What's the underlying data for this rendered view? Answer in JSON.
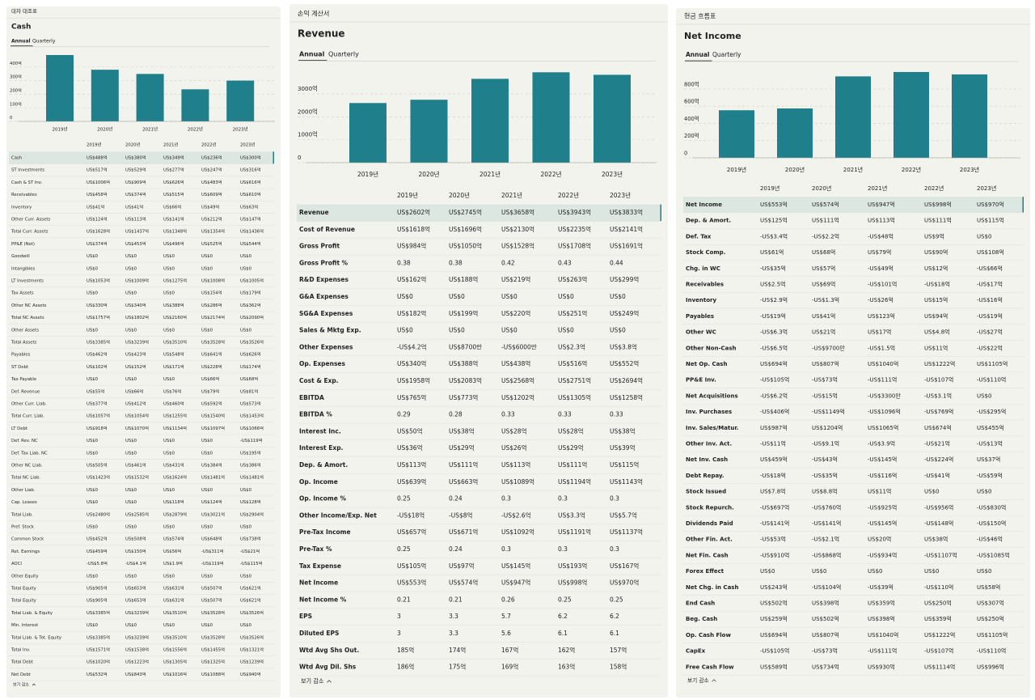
{
  "chart_data": [
    {
      "type": "bar",
      "title": "Cash",
      "categories": [
        "2019년",
        "2020년",
        "2021년",
        "2022년",
        "2023년"
      ],
      "values": [
        488,
        380,
        349,
        236,
        300
      ],
      "color": "#1f7f8a",
      "ylim": [
        0,
        500
      ],
      "yticks": [
        0,
        {
          "value": 100,
          "label": "100억"
        },
        {
          "value": 200,
          "label": "200억"
        },
        {
          "value": 300,
          "label": "300억"
        },
        {
          "value": 400,
          "label": "400억"
        }
      ],
      "grid": true
    },
    {
      "type": "bar",
      "title": "Revenue",
      "categories": [
        "2019년",
        "2020년",
        "2021년",
        "2022년",
        "2023년"
      ],
      "values": [
        2602,
        2745,
        3658,
        3943,
        3833
      ],
      "color": "#1f7f8a",
      "ylim": [
        0,
        4000
      ],
      "yticks": [
        0,
        {
          "value": 1000,
          "label": "1000억"
        },
        {
          "value": 2000,
          "label": "2000억"
        },
        {
          "value": 3000,
          "label": "3000억"
        }
      ],
      "grid": true
    },
    {
      "type": "bar",
      "title": "Net Income",
      "categories": [
        "2019년",
        "2020년",
        "2021년",
        "2022년",
        "2023년"
      ],
      "values": [
        553,
        574,
        947,
        998,
        970
      ],
      "color": "#1f7f8a",
      "ylim": [
        0,
        1000
      ],
      "yticks": [
        0,
        {
          "value": 200,
          "label": "200억"
        },
        {
          "value": 400,
          "label": "400억"
        },
        {
          "value": 600,
          "label": "600억"
        },
        {
          "value": 800,
          "label": "800억"
        }
      ],
      "grid": true
    }
  ],
  "panels": [
    {
      "header": "대차 대조표",
      "tabs": [
        "Annual",
        "Quarterly"
      ],
      "footer": "보기 감소",
      "table": {
        "columns": [
          "2019년",
          "2020년",
          "2021년",
          "2022년",
          "2023년"
        ],
        "rows": [
          [
            "Cash",
            "US$488억",
            "US$380억",
            "US$349억",
            "US$236억",
            "US$300억"
          ],
          [
            "ST Investments",
            "US$517억",
            "US$529억",
            "US$277억",
            "US$247억",
            "US$316억"
          ],
          [
            "Cash & ST Inv.",
            "US$1006억",
            "US$909억",
            "US$626억",
            "US$483억",
            "US$616억"
          ],
          [
            "Receivables",
            "US$458억",
            "US$374억",
            "US$515억",
            "US$609억",
            "US$610억"
          ],
          [
            "Inventory",
            "US$41억",
            "US$41억",
            "US$66억",
            "US$49억",
            "US$63억"
          ],
          [
            "Other Curr. Assets",
            "US$124억",
            "US$113억",
            "US$141억",
            "US$212억",
            "US$147억"
          ],
          [
            "Total Curr. Assets",
            "US$1628억",
            "US$1437억",
            "US$1348억",
            "US$1354억",
            "US$1436억"
          ],
          [
            "PP&E (Net)",
            "US$374억",
            "US$453억",
            "US$496억",
            "US$525억",
            "US$544억"
          ],
          [
            "Goodwill",
            "US$0",
            "US$0",
            "US$0",
            "US$0",
            "US$0"
          ],
          [
            "Intangibles",
            "US$0",
            "US$0",
            "US$0",
            "US$0",
            "US$0"
          ],
          [
            "LT Investments",
            "US$1053억",
            "US$1009억",
            "US$1275억",
            "US$1008억",
            "US$1005억"
          ],
          [
            "Tax Assets",
            "US$0",
            "US$0",
            "US$0",
            "US$154억",
            "US$179억"
          ],
          [
            "Other NC Assets",
            "US$330억",
            "US$340억",
            "US$388억",
            "US$286억",
            "US$362억"
          ],
          [
            "Total NC Assets",
            "US$1757억",
            "US$1802억",
            "US$2160억",
            "US$2174억",
            "US$2090억"
          ],
          [
            "Other Assets",
            "US$0",
            "US$0",
            "US$0",
            "US$0",
            "US$0"
          ],
          [
            "Total Assets",
            "US$3385억",
            "US$3239억",
            "US$3510억",
            "US$3528억",
            "US$3526억"
          ],
          [
            "Payables",
            "US$462억",
            "US$423억",
            "US$548억",
            "US$641억",
            "US$626억"
          ],
          [
            "ST Debt",
            "US$102억",
            "US$152억",
            "US$171억",
            "US$228억",
            "US$174억"
          ],
          [
            "Tax Payable",
            "US$0",
            "US$0",
            "US$0",
            "US$66억",
            "US$68억"
          ],
          [
            "Def. Revenue",
            "US$55억",
            "US$66억",
            "US$76억",
            "US$79억",
            "US$81억"
          ],
          [
            "Other Curr. Liab.",
            "US$377억",
            "US$412억",
            "US$460억",
            "US$592억",
            "US$573억"
          ],
          [
            "Total Curr. Liab.",
            "US$1057억",
            "US$1054억",
            "US$1255억",
            "US$1540억",
            "US$1453억"
          ],
          [
            "LT Debt",
            "US$918억",
            "US$1070억",
            "US$1134억",
            "US$1097억",
            "US$1066억"
          ],
          [
            "Def. Rev. NC",
            "US$0",
            "US$0",
            "US$0",
            "US$0",
            "-US$119억"
          ],
          [
            "Def. Tax Liab. NC",
            "US$0",
            "US$0",
            "US$0",
            "US$0",
            "US$195억"
          ],
          [
            "Other NC Liab.",
            "US$505억",
            "US$461억",
            "US$431억",
            "US$384억",
            "US$386억"
          ],
          [
            "Total NC Liab.",
            "US$1423억",
            "US$1532억",
            "US$1624억",
            "US$1481억",
            "US$1481억"
          ],
          [
            "Other Liab.",
            "US$0",
            "US$0",
            "US$0",
            "US$0",
            "US$0"
          ],
          [
            "Cap. Leases",
            "US$0",
            "US$0",
            "US$118억",
            "US$124억",
            "US$128억"
          ],
          [
            "Total Liab.",
            "US$2480억",
            "US$2585억",
            "US$2879억",
            "US$3021억",
            "US$2904억"
          ],
          [
            "Pref. Stock",
            "US$0",
            "US$0",
            "US$0",
            "US$0",
            "US$0"
          ],
          [
            "Common Stock",
            "US$452억",
            "US$508억",
            "US$574억",
            "US$648억",
            "US$738억"
          ],
          [
            "Ret. Earnings",
            "US$459억",
            "US$150억",
            "US$56억",
            "-US$311억",
            "-US$21억"
          ],
          [
            "AOCI",
            "-US$5.8억",
            "-US$4.1억",
            "US$1.9억",
            "-US$119억",
            "-US$115억"
          ],
          [
            "Other Equity",
            "US$0",
            "US$0",
            "US$0",
            "US$0",
            "US$0"
          ],
          [
            "Total Equity",
            "US$905억",
            "US$653억",
            "US$631억",
            "US$507억",
            "US$621억"
          ],
          [
            "Total Equity",
            "US$905억",
            "US$653억",
            "US$631억",
            "US$507억",
            "US$621억"
          ],
          [
            "Total Liab. & Equity",
            "US$3385억",
            "US$3239억",
            "US$3510억",
            "US$3528억",
            "US$3526억"
          ],
          [
            "Min. Interest",
            "US$0",
            "US$0",
            "US$0",
            "US$0",
            "US$0"
          ],
          [
            "Total Liab. & Tot. Equity",
            "US$3385억",
            "US$3239억",
            "US$3510억",
            "US$3528억",
            "US$3526억"
          ],
          [
            "Total Inv.",
            "US$1571억",
            "US$1538억",
            "US$1556억",
            "US$1455억",
            "US$1321억"
          ],
          [
            "Total Debt",
            "US$1020억",
            "US$1223억",
            "US$1305억",
            "US$1325억",
            "US$1239억"
          ],
          [
            "Net Debt",
            "US$532억",
            "US$843억",
            "US$1016억",
            "US$1088억",
            "US$940억"
          ]
        ]
      }
    },
    {
      "header": "손익 계산서",
      "tabs": [
        "Annual",
        "Quarterly"
      ],
      "footer": "보기 감소",
      "table": {
        "columns": [
          "2019년",
          "2020년",
          "2021년",
          "2022년",
          "2023년"
        ],
        "rows": [
          [
            "Revenue",
            "US$2602억",
            "US$2745억",
            "US$3658억",
            "US$3943억",
            "US$3833억"
          ],
          [
            "Cost of Revenue",
            "US$1618억",
            "US$1696억",
            "US$2130억",
            "US$2235억",
            "US$2141억"
          ],
          [
            "Gross Profit",
            "US$984억",
            "US$1050억",
            "US$1528억",
            "US$1708억",
            "US$1691억"
          ],
          [
            "Gross Profit %",
            "0.38",
            "0.38",
            "0.42",
            "0.43",
            "0.44"
          ],
          [
            "R&D Expenses",
            "US$162억",
            "US$188억",
            "US$219억",
            "US$263억",
            "US$299억"
          ],
          [
            "G&A Expenses",
            "US$0",
            "US$0",
            "US$0",
            "US$0",
            "US$0"
          ],
          [
            "SG&A Expenses",
            "US$182억",
            "US$199억",
            "US$220억",
            "US$251억",
            "US$249억"
          ],
          [
            "Sales & Mktg Exp.",
            "US$0",
            "US$0",
            "US$0",
            "US$0",
            "US$0"
          ],
          [
            "Other Expenses",
            "-US$4.2억",
            "US$8700만",
            "-US$6000만",
            "US$2.3억",
            "US$3.8억"
          ],
          [
            "Op. Expenses",
            "US$340억",
            "US$388억",
            "US$438억",
            "US$516억",
            "US$552억"
          ],
          [
            "Cost & Exp.",
            "US$1958억",
            "US$2083억",
            "US$2568억",
            "US$2751억",
            "US$2694억"
          ],
          [
            "EBITDA",
            "US$765억",
            "US$773억",
            "US$1202억",
            "US$1305억",
            "US$1258억"
          ],
          [
            "EBITDA %",
            "0.29",
            "0.28",
            "0.33",
            "0.33",
            "0.33"
          ],
          [
            "Interest Inc.",
            "US$50억",
            "US$38억",
            "US$28억",
            "US$28억",
            "US$38억"
          ],
          [
            "Interest Exp.",
            "US$36억",
            "US$29억",
            "US$26억",
            "US$29억",
            "US$39억"
          ],
          [
            "Dep. & Amort.",
            "US$113억",
            "US$111억",
            "US$113억",
            "US$111억",
            "US$115억"
          ],
          [
            "Op. Income",
            "US$639억",
            "US$663억",
            "US$1089억",
            "US$1194억",
            "US$1143억"
          ],
          [
            "Op. Income %",
            "0.25",
            "0.24",
            "0.3",
            "0.3",
            "0.3"
          ],
          [
            "Other Income/Exp. Net",
            "-US$18억",
            "-US$8억",
            "-US$2.6억",
            "US$3.3억",
            "US$5.7억"
          ],
          [
            "Pre-Tax Income",
            "US$657억",
            "US$671억",
            "US$1092억",
            "US$1191억",
            "US$1137억"
          ],
          [
            "Pre-Tax %",
            "0.25",
            "0.24",
            "0.3",
            "0.3",
            "0.3"
          ],
          [
            "Tax Expense",
            "US$105억",
            "US$97억",
            "US$145억",
            "US$193억",
            "US$167억"
          ],
          [
            "Net Income",
            "US$553억",
            "US$574억",
            "US$947억",
            "US$998억",
            "US$970억"
          ],
          [
            "Net Income %",
            "0.21",
            "0.21",
            "0.26",
            "0.25",
            "0.25"
          ],
          [
            "EPS",
            "3",
            "3.3",
            "5.7",
            "6.2",
            "6.2"
          ],
          [
            "Diluted EPS",
            "3",
            "3.3",
            "5.6",
            "6.1",
            "6.1"
          ],
          [
            "Wtd Avg Shs Out.",
            "185억",
            "174억",
            "167억",
            "162억",
            "157억"
          ],
          [
            "Wtd Avg Dil. Shs",
            "186억",
            "175억",
            "169억",
            "163억",
            "158억"
          ]
        ]
      }
    },
    {
      "header": "현금 흐름표",
      "tabs": [
        "Annual",
        "Quarterly"
      ],
      "footer": "보기 감소",
      "table": {
        "columns": [
          "2019년",
          "2020년",
          "2021년",
          "2022년",
          "2023년"
        ],
        "rows": [
          [
            "Net Income",
            "US$553억",
            "US$574억",
            "US$947억",
            "US$998억",
            "US$970억"
          ],
          [
            "Dep. & Amort.",
            "US$125억",
            "US$111억",
            "US$113억",
            "US$111억",
            "US$115억"
          ],
          [
            "Def. Tax",
            "-US$3.4억",
            "-US$2.2억",
            "-US$48억",
            "US$9억",
            "US$0"
          ],
          [
            "Stock Comp.",
            "US$61억",
            "US$68억",
            "US$79억",
            "US$90억",
            "US$108억"
          ],
          [
            "Chg. in WC",
            "-US$35억",
            "US$57억",
            "-US$49억",
            "US$12억",
            "-US$66억"
          ],
          [
            "Receivables",
            "US$2.5억",
            "US$69억",
            "-US$101억",
            "-US$18억",
            "-US$17억"
          ],
          [
            "Inventory",
            "-US$2.9억",
            "-US$1.3억",
            "-US$26억",
            "US$15억",
            "-US$16억"
          ],
          [
            "Payables",
            "-US$19억",
            "US$41억",
            "US$123억",
            "US$94억",
            "-US$19억"
          ],
          [
            "Other WC",
            "-US$6.3억",
            "US$21억",
            "US$17억",
            "US$4.8억",
            "-US$27억"
          ],
          [
            "Other Non-Cash",
            "-US$6.5억",
            "-US$9700만",
            "-US$1.5억",
            "US$11억",
            "-US$22억"
          ],
          [
            "Net Op. Cash",
            "US$694억",
            "US$807억",
            "US$1040억",
            "US$1222억",
            "US$1105억"
          ],
          [
            "PP&E Inv.",
            "-US$105억",
            "-US$73억",
            "-US$111억",
            "-US$107억",
            "-US$110억"
          ],
          [
            "Net Acquisitions",
            "-US$6.2억",
            "-US$15억",
            "-US$3300만",
            "-US$3.1억",
            "US$0"
          ],
          [
            "Inv. Purchases",
            "-US$406억",
            "-US$1149억",
            "-US$1096억",
            "-US$769억",
            "-US$295억"
          ],
          [
            "Inv. Sales/Matur.",
            "US$987억",
            "US$1204억",
            "US$1065억",
            "US$674억",
            "US$455억"
          ],
          [
            "Other Inv. Act.",
            "-US$11억",
            "-US$9.1억",
            "-US$3.9억",
            "-US$21억",
            "-US$13억"
          ],
          [
            "Net Inv. Cash",
            "US$459억",
            "-US$43억",
            "-US$145억",
            "-US$224억",
            "US$37억"
          ],
          [
            "Debt Repay.",
            "-US$18억",
            "-US$35억",
            "-US$116억",
            "-US$41억",
            "-US$59억"
          ],
          [
            "Stock Issued",
            "US$7.8억",
            "US$8.8억",
            "US$11억",
            "US$0",
            "US$0"
          ],
          [
            "Stock Repurch.",
            "-US$697억",
            "-US$760억",
            "-US$925억",
            "-US$956억",
            "-US$830억"
          ],
          [
            "Dividends Paid",
            "-US$141억",
            "-US$141억",
            "-US$145억",
            "-US$148억",
            "-US$150억"
          ],
          [
            "Other Fin. Act.",
            "-US$53억",
            "-US$2.1억",
            "US$20억",
            "US$38억",
            "-US$46억"
          ],
          [
            "Net Fin. Cash",
            "-US$910억",
            "-US$868억",
            "-US$934억",
            "-US$1107억",
            "-US$1085억"
          ],
          [
            "Forex Effect",
            "US$0",
            "US$0",
            "US$0",
            "US$0",
            "US$0"
          ],
          [
            "Net Chg. in Cash",
            "US$243억",
            "-US$104억",
            "-US$39억",
            "-US$110억",
            "US$58억"
          ],
          [
            "End Cash",
            "US$502억",
            "US$398억",
            "US$359억",
            "US$250억",
            "US$307억"
          ],
          [
            "Beg. Cash",
            "US$259억",
            "US$502억",
            "US$398억",
            "US$359억",
            "US$250억"
          ],
          [
            "Op. Cash Flow",
            "US$694억",
            "US$807억",
            "US$1040억",
            "US$1222억",
            "US$1105억"
          ],
          [
            "CapEx",
            "-US$105억",
            "-US$73억",
            "-US$111억",
            "-US$107억",
            "-US$110억"
          ],
          [
            "Free Cash Flow",
            "US$589억",
            "US$734억",
            "US$930억",
            "US$1114억",
            "US$996억"
          ]
        ]
      }
    }
  ]
}
